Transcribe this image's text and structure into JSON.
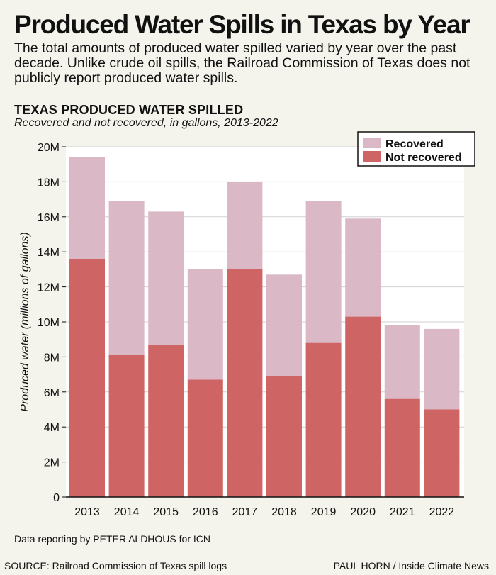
{
  "headline": "Produced Water Spills in Texas by Year",
  "dek": "The total amounts of produced water spilled varied by year over the past decade. Unlike crude oil spills, the Railroad Commission of Texas does not publicly report produced water spills.",
  "footer": {
    "reporting": "Data reporting by PETER ALDHOUS for ICN",
    "source": "SOURCE: Railroad Commission of Texas spill logs",
    "byline": "PAUL HORN / Inside Climate News"
  },
  "colors": {
    "recovered": "#dbb8c5",
    "not_recovered": "#cf6464",
    "background": "#f4f4ec",
    "plot_background": "#ffffff",
    "grid": "#d0d0d0"
  },
  "chart_data": {
    "type": "bar",
    "stacked": true,
    "title": "TEXAS PRODUCED WATER SPILLED",
    "subtitle": "Recovered and not recovered, in gallons, 2013-2022",
    "xlabel": "",
    "ylabel": "Produced water (millions of gallons)",
    "categories": [
      "2013",
      "2014",
      "2015",
      "2016",
      "2017",
      "2018",
      "2019",
      "2020",
      "2021",
      "2022"
    ],
    "series": [
      {
        "name": "Not recovered",
        "values": [
          13.6,
          8.1,
          8.7,
          6.7,
          13.0,
          6.9,
          8.8,
          10.3,
          5.6,
          5.0
        ]
      },
      {
        "name": "Recovered",
        "values": [
          5.8,
          8.8,
          7.6,
          6.3,
          5.0,
          5.8,
          8.1,
          5.6,
          4.2,
          4.6
        ]
      }
    ],
    "ylim": [
      0,
      20
    ],
    "yticks": [
      0,
      2,
      4,
      6,
      8,
      10,
      12,
      14,
      16,
      18,
      20
    ],
    "ytick_labels": [
      "0",
      "2M",
      "4M",
      "6M",
      "8M",
      "10M",
      "12M",
      "14M",
      "16M",
      "18M",
      "20M"
    ],
    "grid": true,
    "legend": {
      "position": "top-right",
      "entries": [
        "Recovered",
        "Not recovered"
      ]
    }
  }
}
